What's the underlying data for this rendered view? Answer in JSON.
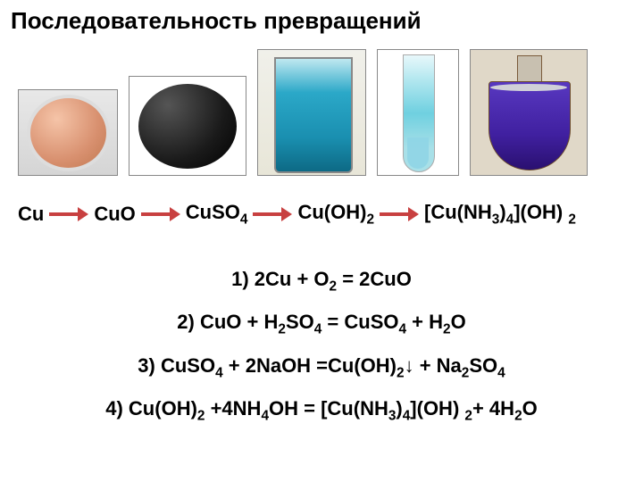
{
  "title": "Последовательность превращений",
  "chain": {
    "s1": "Cu",
    "s2": "CuO",
    "s3": "CuSO",
    "s3_sub": "4",
    "s4": "Cu(OH)",
    "s4_sub": "2",
    "s5_a": "[Cu(NH",
    "s5_sub1": "3",
    "s5_b": ")",
    "s5_sub2": "4",
    "s5_c": "](OH)",
    "s5_d": " ",
    "s5_sub3": "2"
  },
  "equations": {
    "e1_a": "1) 2Cu + O",
    "e1_s1": "2",
    "e1_b": " = 2CuO",
    "e2_a": "2) CuO + H",
    "e2_s1": "2",
    "e2_b": "SO",
    "e2_s2": "4",
    "e2_c": " = CuSO",
    "e2_s3": "4",
    "e2_d": " + H",
    "e2_s4": "2",
    "e2_e": "O",
    "e3_a": "3) CuSO",
    "e3_s1": "4",
    "e3_b": " + 2NaOH =Cu(OH)",
    "e3_s2": "2",
    "e3_c": "↓ + Na",
    "e3_s3": "2",
    "e3_d": "SO",
    "e3_s4": "4",
    "e4_a": "4) Cu(OH)",
    "e4_s1": "2",
    "e4_b": " +4NH",
    "e4_s2": "4",
    "e4_c": "OH = [Cu(NH",
    "e4_s3": "3",
    "e4_d": ")",
    "e4_s4": "4",
    "e4_e": "](OH)",
    "e4_f": " ",
    "e4_s5": "2",
    "e4_g": "+ 4H",
    "e4_s6": "2",
    "e4_h": "O"
  },
  "colors": {
    "arrow": "#c84040",
    "text": "#000000",
    "background": "#ffffff"
  }
}
